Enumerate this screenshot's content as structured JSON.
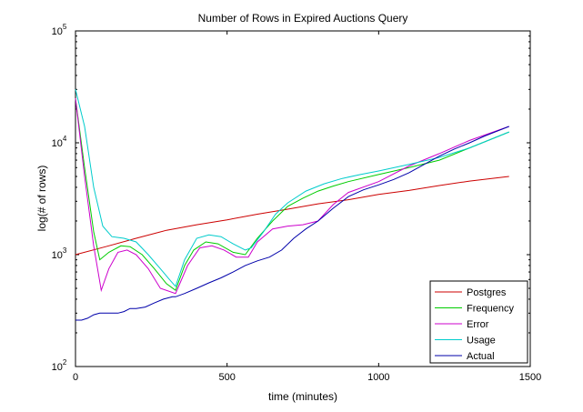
{
  "chart_data": {
    "type": "line",
    "title": "Number of Rows in Expired Auctions Query",
    "xlabel": "time (minutes)",
    "ylabel": "log(# of rows)",
    "xlim": [
      0,
      1500
    ],
    "ylim": [
      100,
      100000
    ],
    "yscale": "log",
    "grid": false,
    "legend_position": "bottom-right",
    "x_ticks": [
      0,
      500,
      1000,
      1500
    ],
    "y_ticks": [
      {
        "value": 100,
        "base": "10",
        "exp": "2"
      },
      {
        "value": 1000,
        "base": "10",
        "exp": "3"
      },
      {
        "value": 10000,
        "base": "10",
        "exp": "4"
      },
      {
        "value": 100000,
        "base": "10",
        "exp": "5"
      }
    ],
    "series": [
      {
        "name": "Postgres",
        "color": "#cc0000",
        "x": [
          0,
          100,
          200,
          300,
          400,
          500,
          600,
          700,
          800,
          900,
          1000,
          1100,
          1200,
          1300,
          1430
        ],
        "y": [
          1000,
          1180,
          1400,
          1650,
          1850,
          2050,
          2300,
          2550,
          2850,
          3100,
          3450,
          3750,
          4150,
          4550,
          5000
        ]
      },
      {
        "name": "Frequency",
        "color": "#00cc00",
        "x": [
          0,
          30,
          60,
          80,
          110,
          150,
          180,
          220,
          260,
          300,
          330,
          360,
          390,
          430,
          470,
          520,
          560,
          600,
          650,
          700,
          750,
          800,
          850,
          900,
          1000,
          1100,
          1200,
          1300,
          1430
        ],
        "y": [
          25000,
          6000,
          1600,
          900,
          1050,
          1200,
          1180,
          1000,
          750,
          550,
          480,
          800,
          1100,
          1300,
          1250,
          1050,
          1000,
          1400,
          2000,
          2700,
          3200,
          3700,
          4100,
          4500,
          5200,
          6000,
          7000,
          9000,
          12500
        ]
      },
      {
        "name": "Error",
        "color": "#cc00cc",
        "x": [
          0,
          30,
          60,
          85,
          110,
          140,
          170,
          200,
          240,
          280,
          330,
          370,
          410,
          450,
          490,
          530,
          570,
          600,
          650,
          700,
          750,
          800,
          850,
          900,
          1000,
          1100,
          1200,
          1300,
          1430
        ],
        "y": [
          25000,
          5000,
          1200,
          480,
          750,
          1050,
          1100,
          1000,
          750,
          500,
          450,
          800,
          1150,
          1200,
          1100,
          950,
          950,
          1300,
          1700,
          1800,
          1850,
          2000,
          2800,
          3600,
          4500,
          6200,
          8000,
          10500,
          14000
        ]
      },
      {
        "name": "Usage",
        "color": "#00cccc",
        "x": [
          0,
          30,
          60,
          90,
          120,
          160,
          200,
          240,
          280,
          310,
          330,
          360,
          400,
          440,
          480,
          520,
          560,
          580,
          620,
          660,
          700,
          760,
          820,
          880,
          940,
          1000,
          1100,
          1200,
          1300,
          1430
        ],
        "y": [
          30000,
          14000,
          4000,
          1800,
          1450,
          1400,
          1300,
          1000,
          750,
          600,
          520,
          900,
          1400,
          1500,
          1450,
          1250,
          1100,
          1150,
          1600,
          2300,
          2900,
          3700,
          4300,
          4800,
          5200,
          5600,
          6400,
          7400,
          9000,
          12500
        ]
      },
      {
        "name": "Actual",
        "color": "#0000aa",
        "x": [
          0,
          20,
          40,
          60,
          80,
          100,
          120,
          140,
          160,
          180,
          200,
          230,
          260,
          290,
          320,
          330,
          360,
          400,
          440,
          480,
          520,
          560,
          600,
          640,
          680,
          720,
          760,
          800,
          850,
          900,
          950,
          1000,
          1050,
          1100,
          1150,
          1200,
          1250,
          1300,
          1350,
          1430
        ],
        "y": [
          260,
          260,
          270,
          290,
          300,
          300,
          300,
          300,
          310,
          330,
          330,
          340,
          370,
          400,
          420,
          420,
          450,
          500,
          560,
          620,
          700,
          800,
          880,
          950,
          1100,
          1400,
          1700,
          2000,
          2600,
          3300,
          3800,
          4200,
          4700,
          5400,
          6400,
          7600,
          8800,
          10000,
          11500,
          14000
        ]
      }
    ]
  }
}
